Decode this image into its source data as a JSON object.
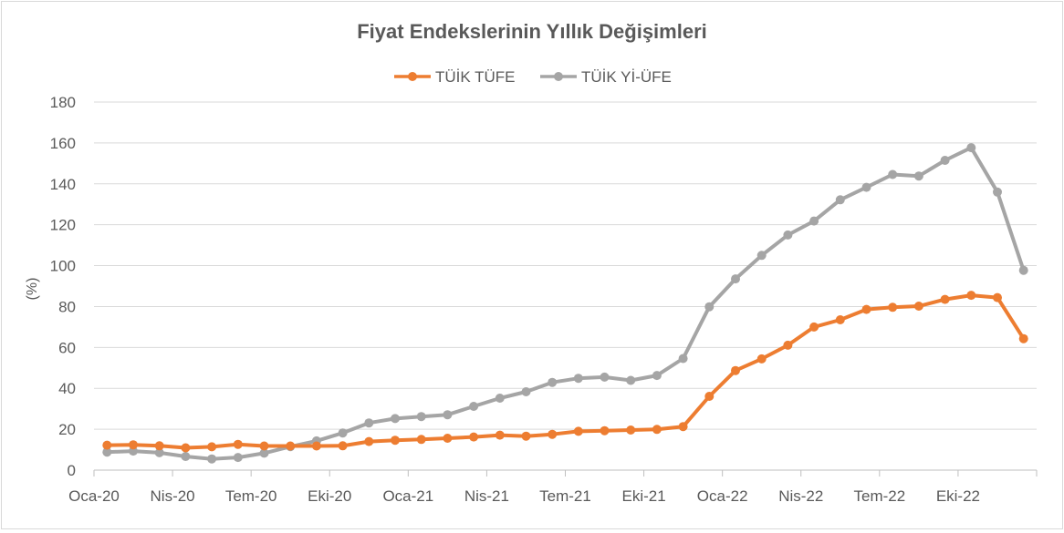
{
  "chart_data": {
    "type": "line",
    "title": "Fiyat Endekslerinin Yıllık Değişimleri",
    "xlabel": "",
    "ylabel": "(%)",
    "ylim": [
      0,
      180
    ],
    "yticks": [
      0,
      20,
      40,
      60,
      80,
      100,
      120,
      140,
      160,
      180
    ],
    "grid": true,
    "legend_position": "top",
    "x": [
      "Oca-20",
      "Şub-20",
      "Mar-20",
      "Nis-20",
      "May-20",
      "Haz-20",
      "Tem-20",
      "Ağu-20",
      "Eyl-20",
      "Eki-20",
      "Kas-20",
      "Ara-20",
      "Oca-21",
      "Şub-21",
      "Mar-21",
      "Nis-21",
      "May-21",
      "Haz-21",
      "Tem-21",
      "Ağu-21",
      "Eyl-21",
      "Eki-21",
      "Kas-21",
      "Ara-21",
      "Oca-22",
      "Şub-22",
      "Mar-22",
      "Nis-22",
      "May-22",
      "Haz-22",
      "Tem-22",
      "Ağu-22",
      "Eyl-22",
      "Eki-22",
      "Kas-22",
      "Ara-22"
    ],
    "xtick_labels": [
      "Oca-20",
      "Nis-20",
      "Tem-20",
      "Eki-20",
      "Oca-21",
      "Nis-21",
      "Tem-21",
      "Eki-21",
      "Oca-22",
      "Nis-22",
      "Tem-22",
      "Eki-22"
    ],
    "xtick_indices": [
      0,
      3,
      6,
      9,
      12,
      15,
      18,
      21,
      24,
      27,
      30,
      33
    ],
    "series": [
      {
        "name": "TÜİK TÜFE",
        "color": "#ed7d31",
        "values": [
          12.2,
          12.4,
          11.9,
          10.9,
          11.4,
          12.6,
          11.8,
          11.8,
          11.8,
          11.9,
          14.0,
          14.6,
          15.0,
          15.6,
          16.2,
          17.1,
          16.6,
          17.5,
          19.0,
          19.3,
          19.6,
          19.9,
          21.3,
          36.1,
          48.7,
          54.4,
          61.1,
          70.0,
          73.5,
          78.6,
          79.6,
          80.2,
          83.5,
          85.5,
          84.4,
          64.3
        ]
      },
      {
        "name": "TÜİK Yİ-ÜFE",
        "color": "#a5a5a5",
        "values": [
          8.8,
          9.3,
          8.5,
          6.7,
          5.5,
          6.2,
          8.3,
          11.5,
          14.3,
          18.2,
          23.1,
          25.2,
          26.2,
          27.1,
          31.2,
          35.2,
          38.3,
          42.9,
          44.9,
          45.5,
          43.9,
          46.3,
          54.6,
          79.9,
          93.5,
          105.0,
          115.0,
          121.8,
          132.2,
          138.3,
          144.6,
          143.8,
          151.5,
          157.7,
          136.0,
          97.7
        ]
      }
    ]
  }
}
